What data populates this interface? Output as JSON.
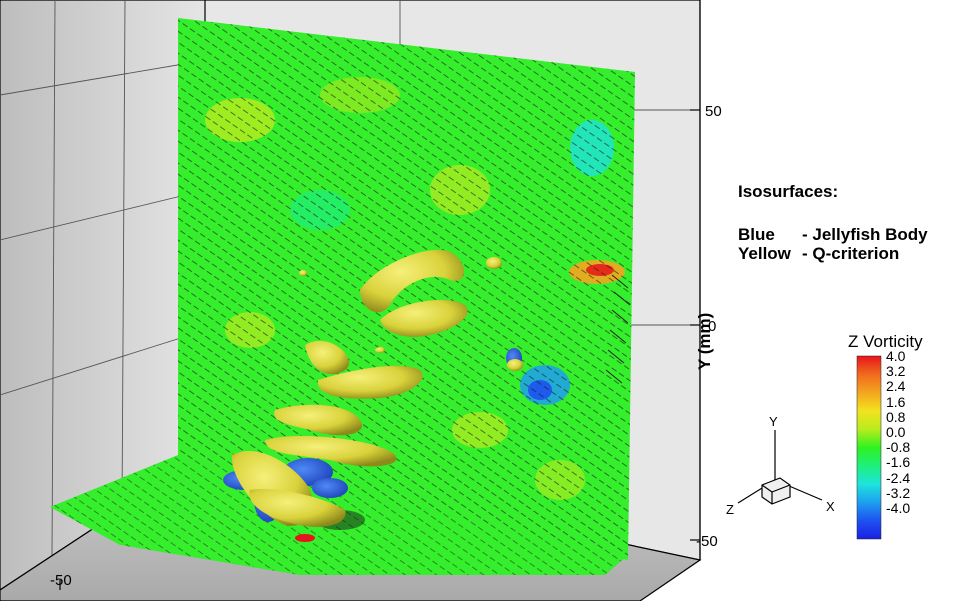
{
  "isosurfaces": {
    "title": "Isosurfaces:",
    "entries": [
      {
        "color_name": "Blue",
        "description": "- Jellyfish Body"
      },
      {
        "color_name": "Yellow",
        "description": "- Q-criterion"
      }
    ]
  },
  "y_axis": {
    "label": "Y (mm)",
    "ticks": [
      "50",
      "0",
      "-50"
    ]
  },
  "x_axis": {
    "ticks": [
      "-50"
    ]
  },
  "colorbar": {
    "title": "Z Vorticity",
    "labels": [
      "4.0",
      "3.2",
      "2.4",
      "1.6",
      "0.8",
      "0.0",
      "-0.8",
      "-1.6",
      "-2.4",
      "-3.2",
      "-4.0"
    ],
    "colors": [
      "#e8141b",
      "#f06a1e",
      "#f4a51f",
      "#f2e21e",
      "#b9ec1e",
      "#2ff21f",
      "#1ef07c",
      "#1ee3dc",
      "#1e9ff0",
      "#1e52f0",
      "#1b1fe4"
    ]
  },
  "axis_triad": {
    "x": "X",
    "y": "Y",
    "z": "Z"
  },
  "colors": {
    "vorticity_green": "#35ee2c",
    "body_blue": "#2a62e8",
    "qcrit_yellow": "#d8d23a",
    "wall_gray": "#d9d9d9",
    "floor_gray": "#c0c0c0"
  }
}
